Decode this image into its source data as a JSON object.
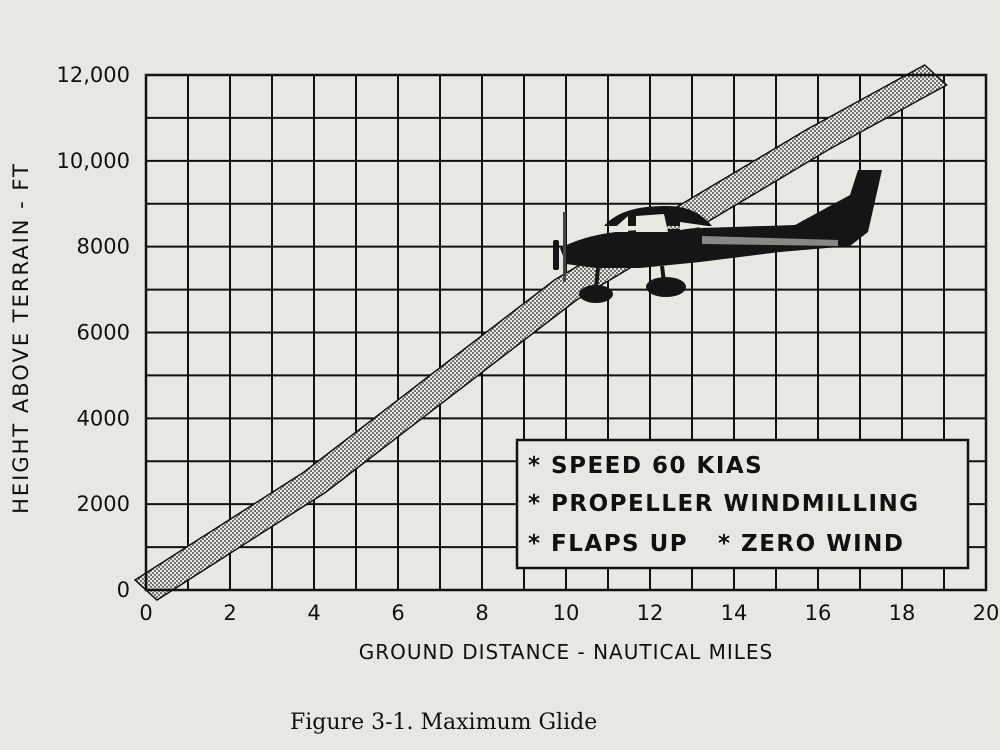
{
  "chart_data": {
    "type": "line",
    "title": "",
    "xlabel": "GROUND DISTANCE - NAUTICAL MILES",
    "ylabel": "HEIGHT ABOVE TERRAIN - FT",
    "xlim": [
      0,
      20
    ],
    "ylim": [
      0,
      12000
    ],
    "x_ticks": [
      0,
      2,
      4,
      6,
      8,
      10,
      12,
      14,
      16,
      18,
      20
    ],
    "y_ticks": [
      0,
      2000,
      4000,
      6000,
      8000,
      10000,
      12000
    ],
    "x_tick_labels": [
      "0",
      "2",
      "4",
      "6",
      "8",
      "10",
      "12",
      "14",
      "16",
      "18",
      "20"
    ],
    "y_tick_labels": [
      "0",
      "2000",
      "4000",
      "6000",
      "8000",
      "10,000",
      "12,000"
    ],
    "grid": true,
    "series": [
      {
        "x": [
          0,
          4,
          6,
          10,
          16,
          18.8
        ],
        "y": [
          0,
          2500,
          4000,
          7000,
          10500,
          12000
        ]
      }
    ],
    "legend": {
      "placement": "lower-right",
      "lines": [
        "* SPEED 60 KIAS",
        "* PROPELLER WINDMILLING",
        "* FLAPS UP",
        "* ZERO WIND"
      ]
    },
    "caption": "Figure 3-1.  Maximum Glide",
    "colors": {
      "ink": "#111111",
      "paper": "#e9e7e2"
    }
  }
}
